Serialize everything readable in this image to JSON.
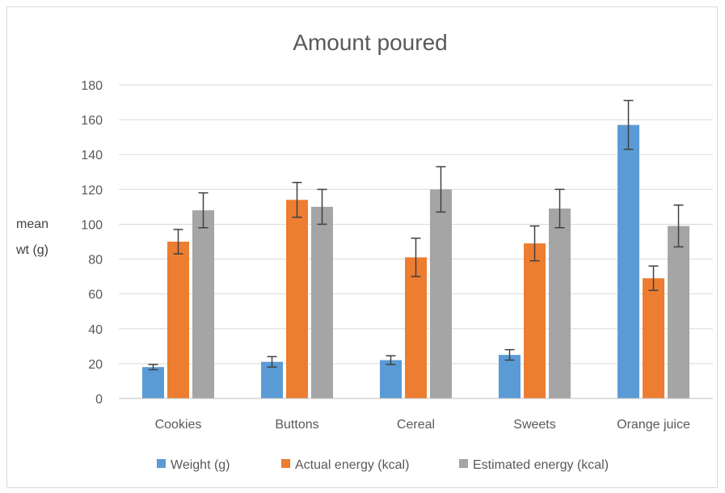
{
  "chart_data": {
    "type": "bar",
    "title": "Amount poured",
    "ylabel_lines": [
      "mean",
      "wt (g)"
    ],
    "xlabel": "",
    "categories": [
      "Cookies",
      "Buttons",
      "Cereal",
      "Sweets",
      "Orange juice"
    ],
    "ylim": [
      0,
      180
    ],
    "yticks": [
      0,
      20,
      40,
      60,
      80,
      100,
      120,
      140,
      160,
      180
    ],
    "grid": true,
    "legend": "bottom",
    "series": [
      {
        "name": "Weight (g)",
        "color": "#5b9bd5",
        "values": [
          18,
          21,
          22,
          25,
          157
        ],
        "errors": [
          1.5,
          3,
          2.5,
          3,
          14
        ]
      },
      {
        "name": "Actual energy (kcal)",
        "color": "#ed7d31",
        "values": [
          90,
          114,
          81,
          89,
          69
        ],
        "errors": [
          7,
          10,
          11,
          10,
          7
        ]
      },
      {
        "name": "Estimated energy (kcal)",
        "color": "#a5a5a5",
        "values": [
          108,
          110,
          120,
          109,
          99
        ],
        "errors": [
          10,
          10,
          13,
          11,
          12
        ]
      }
    ]
  }
}
